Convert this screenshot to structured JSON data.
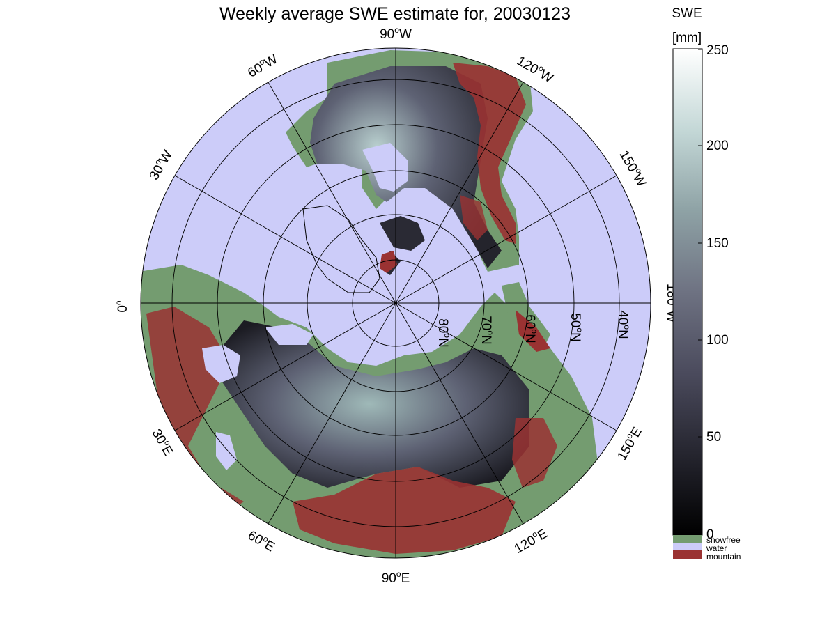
{
  "title": "Weekly average SWE estimate for, 20030123",
  "colorbar": {
    "title_line1": "SWE",
    "title_line2": "[mm]",
    "min": 0,
    "max": 250,
    "ticks": [
      "0",
      "50",
      "100",
      "150",
      "200",
      "250"
    ],
    "gradient": [
      "#000000",
      "#262630",
      "#4a4a5c",
      "#6e7282",
      "#8fa3a6",
      "#c3d7d6",
      "#ffffff"
    ]
  },
  "legend": [
    {
      "label": "snowfree",
      "color": "#749c70"
    },
    {
      "label": "water",
      "color": "#ccccf9"
    },
    {
      "label": "mountain",
      "color": "#9a3232"
    }
  ],
  "colors": {
    "water": "#ccccf9",
    "snowfree": "#749c70",
    "mountain": "#9a3232",
    "snow_deep": "#4a4c5e",
    "snow_shallow": "#1b1b22",
    "snow_heavy": "#9fb9b8"
  },
  "longitude_labels": [
    {
      "num": "90",
      "deg": "o",
      "dir": "W"
    },
    {
      "num": "120",
      "deg": "o",
      "dir": "W"
    },
    {
      "num": "150",
      "deg": "o",
      "dir": "W"
    },
    {
      "num": "180",
      "deg": "o",
      "dir": "W"
    },
    {
      "num": "150",
      "deg": "o",
      "dir": "E"
    },
    {
      "num": "120",
      "deg": "o",
      "dir": "E"
    },
    {
      "num": "90",
      "deg": "o",
      "dir": "E"
    },
    {
      "num": "60",
      "deg": "o",
      "dir": "E"
    },
    {
      "num": "30",
      "deg": "o",
      "dir": "E"
    },
    {
      "num": "0",
      "deg": "o",
      "dir": ""
    },
    {
      "num": "30",
      "deg": "o",
      "dir": "W"
    },
    {
      "num": "60",
      "deg": "o",
      "dir": "W"
    }
  ],
  "latitude_labels": [
    {
      "num": "80",
      "deg": "o",
      "dir": "N"
    },
    {
      "num": "70",
      "deg": "o",
      "dir": "N"
    },
    {
      "num": "60",
      "deg": "o",
      "dir": "N"
    },
    {
      "num": "50",
      "deg": "o",
      "dir": "N"
    },
    {
      "num": "40",
      "deg": "o",
      "dir": "N"
    }
  ]
}
